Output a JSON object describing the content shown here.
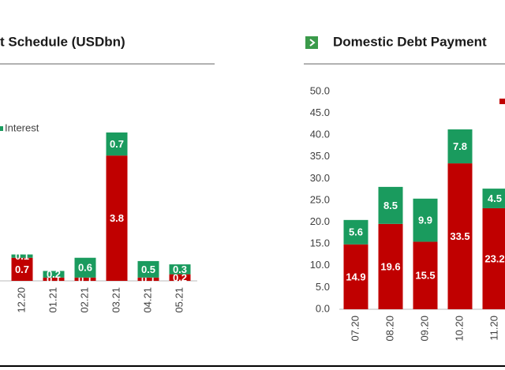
{
  "chart_data": [
    {
      "type": "bar",
      "stacked": true,
      "title": "t Schedule (USDbn)",
      "categories": [
        "12.20",
        "01.21",
        "02.21",
        "03.21",
        "04.21",
        "05.21"
      ],
      "series": [
        {
          "color": "#c00000",
          "values": [
            0.7,
            0.1,
            0.1,
            3.8,
            0.1,
            0.2
          ]
        },
        {
          "name": "Interest",
          "color": "#1a9b5e",
          "values": [
            0.1,
            0.2,
            0.6,
            0.7,
            0.5,
            0.3
          ]
        }
      ],
      "ylim": [
        0,
        5
      ]
    },
    {
      "type": "bar",
      "stacked": true,
      "title": "Domestic Debt Payment",
      "categories": [
        "07.20",
        "08.20",
        "09.20",
        "10.20",
        "11.20"
      ],
      "series": [
        {
          "color": "#c00000",
          "values": [
            14.9,
            19.6,
            15.5,
            33.5,
            23.2
          ]
        },
        {
          "color": "#1a9b5e",
          "values": [
            5.6,
            8.5,
            9.9,
            7.8,
            4.5
          ]
        }
      ],
      "ylim": [
        0,
        50
      ],
      "yticks": [
        {
          "value": 0,
          "label": "0.0"
        },
        {
          "value": 5,
          "label": "5.0"
        },
        {
          "value": 10,
          "label": "10.0"
        },
        {
          "value": 15,
          "label": "15.0"
        },
        {
          "value": 20,
          "label": "20.0"
        },
        {
          "value": 25,
          "label": "25.0"
        },
        {
          "value": 30,
          "label": "30.0"
        },
        {
          "value": 35,
          "label": "35.0"
        },
        {
          "value": 40,
          "label": "40.0"
        },
        {
          "value": 45,
          "label": "45.0"
        },
        {
          "value": 50,
          "label": "50.0"
        }
      ]
    }
  ]
}
